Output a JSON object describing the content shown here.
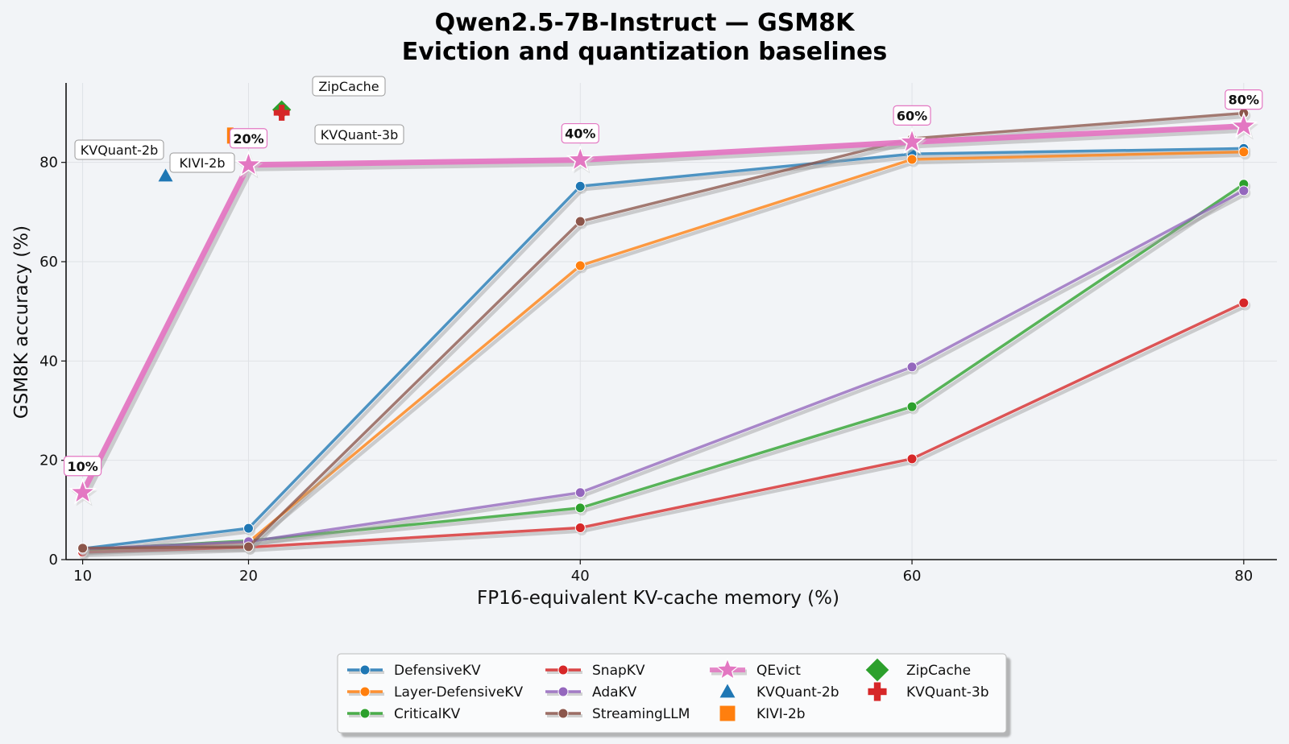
{
  "chart_data": {
    "type": "line",
    "title": "Qwen2.5-7B-Instruct — GSM8K",
    "subtitle": "Eviction and quantization baselines",
    "xlabel": "FP16-equivalent KV-cache memory (%)",
    "ylabel": "GSM8K accuracy (%)",
    "xlim": [
      9,
      82
    ],
    "ylim": [
      0,
      96
    ],
    "xticks": [
      10,
      20,
      40,
      60,
      80
    ],
    "yticks": [
      0,
      20,
      40,
      60,
      80
    ],
    "grid": true,
    "legend_position": "bottom-center",
    "x": [
      10,
      20,
      40,
      60,
      80
    ],
    "series": [
      {
        "name": "DefensiveKV",
        "color": "#1f77b4",
        "values": [
          2.2,
          6.3,
          75.2,
          81.7,
          82.8
        ]
      },
      {
        "name": "Layer-DefensiveKV",
        "color": "#ff7f0e",
        "values": [
          1.8,
          3.5,
          59.2,
          80.6,
          82.1
        ]
      },
      {
        "name": "CriticalKV",
        "color": "#2ca02c",
        "values": [
          2.0,
          3.8,
          10.4,
          30.8,
          75.6
        ]
      },
      {
        "name": "SnapKV",
        "color": "#d62728",
        "values": [
          1.5,
          2.5,
          6.4,
          20.3,
          51.7
        ]
      },
      {
        "name": "AdaKV",
        "color": "#9467bd",
        "values": [
          2.1,
          3.6,
          13.5,
          38.8,
          74.3
        ]
      },
      {
        "name": "StreamingLLM",
        "color": "#8c564b",
        "values": [
          2.3,
          2.6,
          68.1,
          84.8,
          89.9
        ]
      },
      {
        "name": "QEvict",
        "color": "#e377c2",
        "values": [
          13.5,
          79.5,
          80.5,
          84.1,
          87.3
        ]
      }
    ],
    "qevict_point_labels": [
      "10%",
      "20%",
      "40%",
      "60%",
      "80%"
    ],
    "quantization_baselines": [
      {
        "name": "KVQuant-2b",
        "marker": "triangle",
        "color": "#1f77b4",
        "x": 15,
        "y": 77.3
      },
      {
        "name": "KIVI-2b",
        "marker": "square",
        "color": "#ff7f0e",
        "x": 18.9,
        "y": 85.4
      },
      {
        "name": "ZipCache",
        "marker": "diamond",
        "color": "#2ca02c",
        "x": 22,
        "y": 90.6
      },
      {
        "name": "KVQuant-3b",
        "marker": "plus",
        "color": "#d62728",
        "x": 22,
        "y": 90.0
      }
    ],
    "annotations": [
      {
        "text": "KVQuant-2b"
      },
      {
        "text": "KIVI-2b"
      },
      {
        "text": "ZipCache"
      },
      {
        "text": "KVQuant-3b"
      }
    ],
    "legend": {
      "lines": [
        "DefensiveKV",
        "Layer-DefensiveKV",
        "CriticalKV",
        "SnapKV",
        "AdaKV",
        "StreamingLLM",
        "QEvict"
      ],
      "markers": [
        "KVQuant-2b",
        "KIVI-2b",
        "ZipCache",
        "KVQuant-3b"
      ]
    }
  }
}
